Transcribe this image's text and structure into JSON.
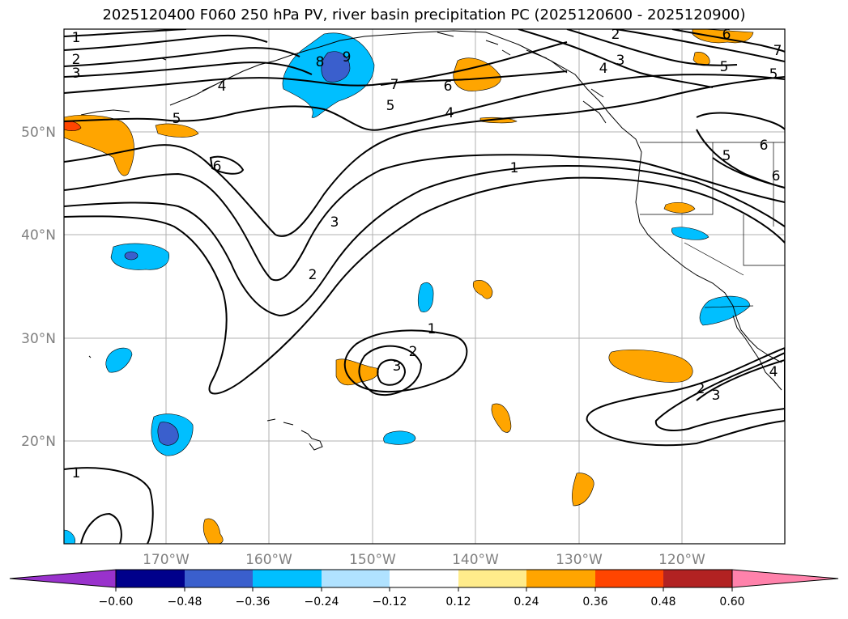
{
  "title": "2025120400 F060 250 hPa PV, river basin precipitation PC (2025120600 - 2025120900)",
  "lat_ticks": [
    "50°N",
    "40°N",
    "30°N",
    "20°N"
  ],
  "lon_ticks": [
    "170°W",
    "160°W",
    "150°W",
    "140°W",
    "130°W",
    "120°W"
  ],
  "colorbar": {
    "colors": [
      "#9932cc",
      "#00008b",
      "#3a5fcd",
      "#00bfff",
      "#b0e2ff",
      "#ffffff",
      "#ffec8b",
      "#ffa500",
      "#ff4500",
      "#b22222",
      "#ff82ab"
    ],
    "tick_labels": [
      "−0.60",
      "−0.48",
      "−0.36",
      "−0.24",
      "−0.12",
      "0.12",
      "0.24",
      "0.36",
      "0.48",
      "0.60"
    ]
  },
  "contour_labels": [
    "1",
    "2",
    "3",
    "7",
    "8",
    "9",
    "6",
    "2",
    "4",
    "3",
    "4",
    "5",
    "4",
    "5",
    "7",
    "6",
    "5",
    "5",
    "6",
    "1",
    "6",
    "3",
    "2",
    "1",
    "2",
    "3",
    "1",
    "2",
    "3",
    "4",
    "5",
    "6"
  ]
}
